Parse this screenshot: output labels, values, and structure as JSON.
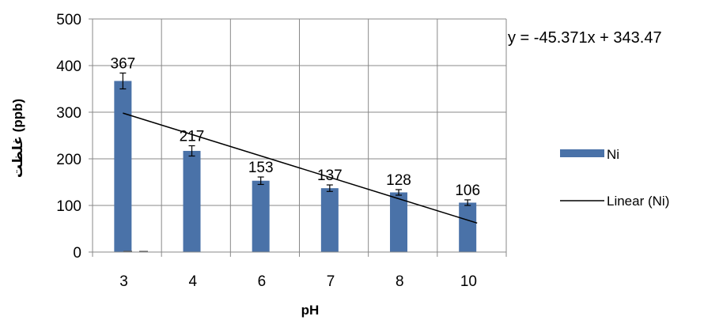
{
  "chart_data": {
    "type": "bar",
    "categories": [
      "3",
      "4",
      "6",
      "7",
      "8",
      "10"
    ],
    "series": [
      {
        "name": "Ni",
        "values": [
          367,
          217,
          153,
          137,
          128,
          106
        ],
        "error": [
          17,
          11,
          8,
          7,
          6,
          6
        ],
        "color": "#4a72a8"
      }
    ],
    "data_labels": [
      "367",
      "217",
      "153",
      "137",
      "128",
      "106"
    ],
    "trendline": {
      "type": "linear",
      "name": "Linear (Ni)",
      "slope": -45.371,
      "intercept": 343.47,
      "equation": "y = -45.371x + 343.47",
      "color": "#000000"
    },
    "xlabel": "pH",
    "ylabel": "غلظت (ppb)",
    "ylim": [
      0,
      500
    ],
    "yticks": [
      "0",
      "100",
      "200",
      "300",
      "400",
      "500"
    ],
    "grid": true,
    "legend_position": "right"
  }
}
